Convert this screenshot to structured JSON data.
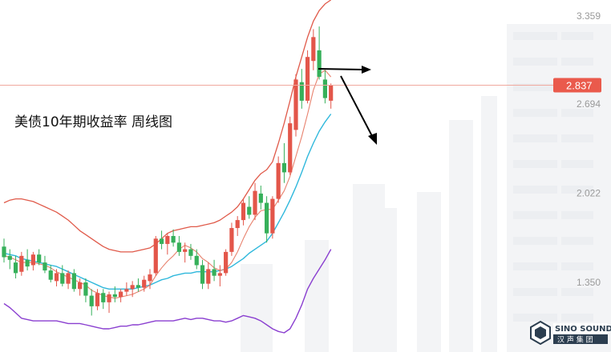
{
  "chart_data": {
    "type": "candlestick",
    "title": "美债10年期收益率  周线图",
    "y_ticks": [
      3.359,
      2.694,
      2.022,
      1.35
    ],
    "y_tick_labels": [
      "3.359",
      "2.694",
      "2.022",
      "1.350"
    ],
    "last_price": 2.837,
    "last_price_label": "2.837",
    "ylim": [
      0.88,
      3.5
    ],
    "candles": [
      {
        "o": 1.62,
        "h": 1.68,
        "l": 1.5,
        "c": 1.54
      },
      {
        "o": 1.55,
        "h": 1.6,
        "l": 1.45,
        "c": 1.52
      },
      {
        "o": 1.5,
        "h": 1.55,
        "l": 1.38,
        "c": 1.42
      },
      {
        "o": 1.43,
        "h": 1.58,
        "l": 1.4,
        "c": 1.55
      },
      {
        "o": 1.52,
        "h": 1.6,
        "l": 1.44,
        "c": 1.47
      },
      {
        "o": 1.48,
        "h": 1.58,
        "l": 1.44,
        "c": 1.56
      },
      {
        "o": 1.56,
        "h": 1.6,
        "l": 1.48,
        "c": 1.5
      },
      {
        "o": 1.5,
        "h": 1.55,
        "l": 1.42,
        "c": 1.44
      },
      {
        "o": 1.44,
        "h": 1.48,
        "l": 1.35,
        "c": 1.37
      },
      {
        "o": 1.36,
        "h": 1.45,
        "l": 1.32,
        "c": 1.42
      },
      {
        "o": 1.42,
        "h": 1.48,
        "l": 1.32,
        "c": 1.34
      },
      {
        "o": 1.34,
        "h": 1.44,
        "l": 1.3,
        "c": 1.42
      },
      {
        "o": 1.42,
        "h": 1.45,
        "l": 1.28,
        "c": 1.3
      },
      {
        "o": 1.3,
        "h": 1.38,
        "l": 1.25,
        "c": 1.35
      },
      {
        "o": 1.35,
        "h": 1.38,
        "l": 1.2,
        "c": 1.25
      },
      {
        "o": 1.25,
        "h": 1.3,
        "l": 1.1,
        "c": 1.17
      },
      {
        "o": 1.17,
        "h": 1.3,
        "l": 1.14,
        "c": 1.27
      },
      {
        "o": 1.27,
        "h": 1.3,
        "l": 1.15,
        "c": 1.2
      },
      {
        "o": 1.2,
        "h": 1.28,
        "l": 1.12,
        "c": 1.26
      },
      {
        "o": 1.26,
        "h": 1.32,
        "l": 1.2,
        "c": 1.24
      },
      {
        "o": 1.24,
        "h": 1.3,
        "l": 1.2,
        "c": 1.28
      },
      {
        "o": 1.28,
        "h": 1.35,
        "l": 1.25,
        "c": 1.3
      },
      {
        "o": 1.3,
        "h": 1.36,
        "l": 1.24,
        "c": 1.33
      },
      {
        "o": 1.33,
        "h": 1.38,
        "l": 1.28,
        "c": 1.31
      },
      {
        "o": 1.31,
        "h": 1.4,
        "l": 1.28,
        "c": 1.37
      },
      {
        "o": 1.36,
        "h": 1.45,
        "l": 1.3,
        "c": 1.41
      },
      {
        "o": 1.42,
        "h": 1.7,
        "l": 1.4,
        "c": 1.68
      },
      {
        "o": 1.68,
        "h": 1.74,
        "l": 1.6,
        "c": 1.64
      },
      {
        "o": 1.64,
        "h": 1.72,
        "l": 1.56,
        "c": 1.7
      },
      {
        "o": 1.7,
        "h": 1.75,
        "l": 1.62,
        "c": 1.65
      },
      {
        "o": 1.65,
        "h": 1.7,
        "l": 1.55,
        "c": 1.58
      },
      {
        "o": 1.58,
        "h": 1.65,
        "l": 1.5,
        "c": 1.6
      },
      {
        "o": 1.6,
        "h": 1.64,
        "l": 1.52,
        "c": 1.55
      },
      {
        "o": 1.55,
        "h": 1.6,
        "l": 1.45,
        "c": 1.48
      },
      {
        "o": 1.48,
        "h": 1.52,
        "l": 1.3,
        "c": 1.34
      },
      {
        "o": 1.34,
        "h": 1.5,
        "l": 1.3,
        "c": 1.45
      },
      {
        "o": 1.45,
        "h": 1.52,
        "l": 1.36,
        "c": 1.4
      },
      {
        "o": 1.4,
        "h": 1.48,
        "l": 1.32,
        "c": 1.42
      },
      {
        "o": 1.42,
        "h": 1.6,
        "l": 1.4,
        "c": 1.58
      },
      {
        "o": 1.58,
        "h": 1.8,
        "l": 1.55,
        "c": 1.76
      },
      {
        "o": 1.76,
        "h": 1.85,
        "l": 1.7,
        "c": 1.82
      },
      {
        "o": 1.82,
        "h": 1.98,
        "l": 1.78,
        "c": 1.95
      },
      {
        "o": 1.92,
        "h": 2.0,
        "l": 1.83,
        "c": 1.86
      },
      {
        "o": 1.86,
        "h": 2.1,
        "l": 1.82,
        "c": 2.04
      },
      {
        "o": 2.02,
        "h": 2.08,
        "l": 1.9,
        "c": 1.95
      },
      {
        "o": 1.95,
        "h": 2.0,
        "l": 1.65,
        "c": 1.72
      },
      {
        "o": 1.72,
        "h": 2.0,
        "l": 1.68,
        "c": 1.98
      },
      {
        "o": 1.98,
        "h": 2.3,
        "l": 1.95,
        "c": 2.25
      },
      {
        "o": 2.25,
        "h": 2.4,
        "l": 2.1,
        "c": 2.18
      },
      {
        "o": 2.18,
        "h": 2.6,
        "l": 2.16,
        "c": 2.55
      },
      {
        "o": 2.5,
        "h": 2.92,
        "l": 2.45,
        "c": 2.88
      },
      {
        "o": 2.86,
        "h": 2.96,
        "l": 2.66,
        "c": 2.72
      },
      {
        "o": 2.72,
        "h": 3.1,
        "l": 2.7,
        "c": 3.05
      },
      {
        "o": 3.02,
        "h": 3.26,
        "l": 2.95,
        "c": 3.2
      },
      {
        "o": 3.1,
        "h": 3.28,
        "l": 2.88,
        "c": 2.9
      },
      {
        "o": 2.88,
        "h": 2.95,
        "l": 2.7,
        "c": 2.74
      },
      {
        "o": 2.72,
        "h": 2.85,
        "l": 2.66,
        "c": 2.84
      }
    ],
    "ma_short": [
      1.55,
      1.54,
      1.52,
      1.5,
      1.5,
      1.5,
      1.49,
      1.48,
      1.46,
      1.43,
      1.41,
      1.39,
      1.37,
      1.35,
      1.33,
      1.29,
      1.27,
      1.25,
      1.24,
      1.23,
      1.24,
      1.25,
      1.26,
      1.28,
      1.3,
      1.33,
      1.4,
      1.46,
      1.51,
      1.55,
      1.6,
      1.63,
      1.61,
      1.58,
      1.53,
      1.5,
      1.46,
      1.44,
      1.45,
      1.5,
      1.58,
      1.68,
      1.77,
      1.84,
      1.89,
      1.9,
      1.9,
      1.97,
      2.04,
      2.15,
      2.3,
      2.45,
      2.62,
      2.8,
      2.92,
      2.95,
      2.9
    ],
    "bb_upper": [
      1.95,
      1.97,
      1.98,
      1.98,
      1.97,
      1.96,
      1.94,
      1.92,
      1.9,
      1.88,
      1.85,
      1.82,
      1.78,
      1.74,
      1.71,
      1.68,
      1.65,
      1.62,
      1.6,
      1.59,
      1.58,
      1.58,
      1.58,
      1.59,
      1.6,
      1.61,
      1.64,
      1.68,
      1.72,
      1.74,
      1.75,
      1.76,
      1.77,
      1.77,
      1.78,
      1.79,
      1.8,
      1.82,
      1.85,
      1.88,
      1.92,
      1.98,
      2.05,
      2.12,
      2.17,
      2.2,
      2.26,
      2.4,
      2.55,
      2.72,
      2.9,
      3.05,
      3.2,
      3.32,
      3.4,
      3.45,
      3.48
    ],
    "bb_mid": [
      1.57,
      1.56,
      1.55,
      1.53,
      1.52,
      1.51,
      1.5,
      1.49,
      1.48,
      1.47,
      1.45,
      1.43,
      1.41,
      1.39,
      1.37,
      1.35,
      1.33,
      1.31,
      1.3,
      1.3,
      1.3,
      1.3,
      1.3,
      1.31,
      1.32,
      1.33,
      1.35,
      1.37,
      1.38,
      1.4,
      1.41,
      1.42,
      1.42,
      1.43,
      1.43,
      1.43,
      1.43,
      1.44,
      1.45,
      1.47,
      1.5,
      1.53,
      1.57,
      1.6,
      1.63,
      1.66,
      1.72,
      1.8,
      1.88,
      1.97,
      2.07,
      2.18,
      2.3,
      2.4,
      2.49,
      2.56,
      2.62
    ],
    "bb_lower": [
      1.19,
      1.16,
      1.12,
      1.08,
      1.07,
      1.06,
      1.06,
      1.06,
      1.06,
      1.06,
      1.05,
      1.04,
      1.04,
      1.04,
      1.03,
      1.02,
      1.01,
      1.0,
      1.0,
      1.01,
      1.02,
      1.02,
      1.03,
      1.03,
      1.04,
      1.05,
      1.06,
      1.06,
      1.06,
      1.06,
      1.07,
      1.08,
      1.07,
      1.08,
      1.08,
      1.07,
      1.06,
      1.06,
      1.05,
      1.06,
      1.08,
      1.1,
      1.09,
      1.08,
      1.06,
      1.03,
      1.0,
      0.98,
      0.97,
      1.0,
      1.08,
      1.18,
      1.3,
      1.38,
      1.45,
      1.52,
      1.6
    ],
    "colors": {
      "up": "#e3564a",
      "down": "#36b05a",
      "ma_short": "#e8826e",
      "bb_upper": "#e05a4a",
      "bb_mid": "#2fb8dc",
      "bb_lower": "#8a3fd0",
      "price_line": "#f0a89e",
      "last_bg": "#ea5a4c",
      "arrow": "#000000"
    }
  },
  "logo": {
    "en": "SINO SOUND",
    "cn": "汉 声 集 团"
  }
}
